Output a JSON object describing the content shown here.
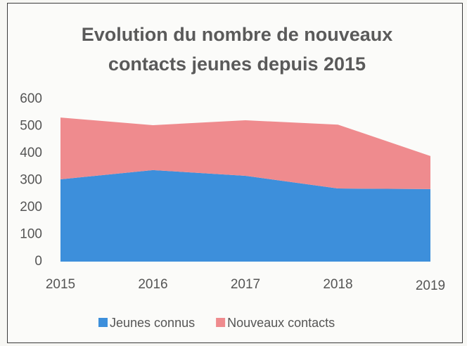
{
  "chart_data": {
    "type": "stacked-area",
    "title": "Evolution du nombre de nouveaux contacts jeunes depuis 2015",
    "categories": [
      "2015",
      "2016",
      "2017",
      "2018",
      "2019"
    ],
    "series": [
      {
        "name": "Jeunes connus",
        "color": "#3d8fdb",
        "values": [
          304,
          338,
          317,
          270,
          268
        ]
      },
      {
        "name": "Nouveaux contacts",
        "color": "#ef8b8e",
        "values": [
          228,
          166,
          205,
          236,
          122
        ]
      }
    ],
    "ylim": [
      0,
      600
    ],
    "yticks": [
      0,
      100,
      200,
      300,
      400,
      500,
      600
    ],
    "legend": "bottom"
  }
}
